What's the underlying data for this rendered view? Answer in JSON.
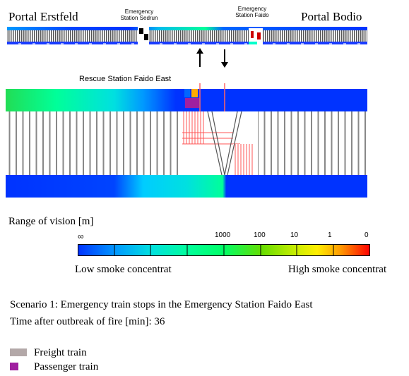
{
  "overview": {
    "portal_left": "Portal Erstfeld",
    "portal_right": "Portal Bodio",
    "station_sedrun": [
      "Emergency",
      "Station Sedrun"
    ],
    "station_faido": [
      "Emergency",
      "Station Faido"
    ]
  },
  "detail": {
    "rescue_station_label": "Rescue Station Faido East"
  },
  "scale": {
    "title": "Range of vision [m]",
    "tick_labels": [
      "∞",
      "1000",
      "100",
      "10",
      "1",
      "0"
    ],
    "low_label": "Low smoke concentrat",
    "high_label": "High smoke concentrat",
    "colors": [
      "#0033ff",
      "#0099ff",
      "#00e0e0",
      "#00ff99",
      "#33dd33",
      "#99dd00",
      "#ffff00",
      "#ff9900",
      "#ff0000"
    ]
  },
  "caption": {
    "scenario": "Scenario 1: Emergency train stops in the Emergency Station Faido East",
    "time_label": "Time after outbreak of fire [min]: 36"
  },
  "legend": [
    {
      "label": "Freight train",
      "color": "#b3a8a8"
    },
    {
      "label": "Passenger train",
      "color": "#a020a0"
    }
  ]
}
